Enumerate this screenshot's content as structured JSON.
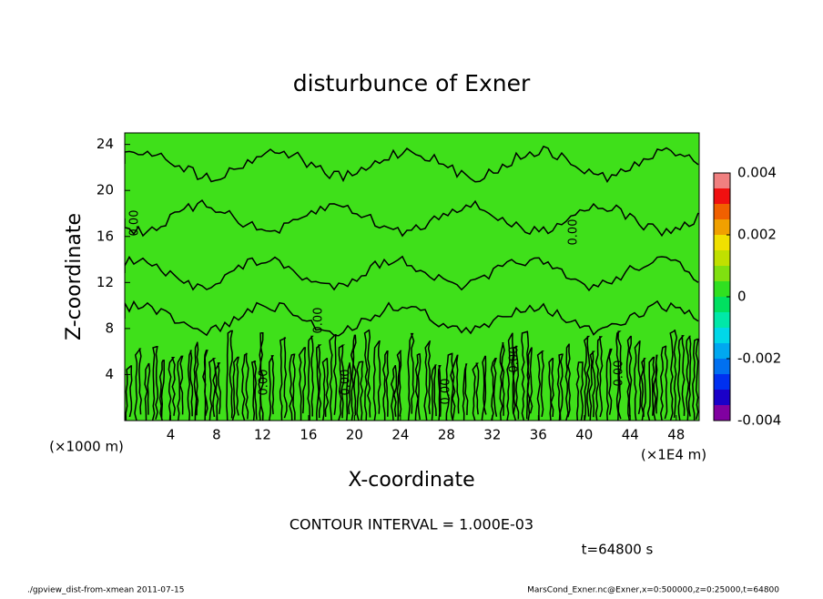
{
  "chart_data": {
    "type": "contour",
    "title": "disturbunce of Exner",
    "x_label": "X-coordinate",
    "y_label": "Z-coordinate",
    "x_unit": "(×1E4 m)",
    "y_unit": "(×1000 m)",
    "xlim": [
      0,
      50
    ],
    "xticks": [
      4,
      8,
      12,
      16,
      20,
      24,
      28,
      32,
      36,
      40,
      44,
      48
    ],
    "ylim": [
      0,
      25
    ],
    "yticks": [
      4,
      8,
      12,
      16,
      20,
      24
    ],
    "field_color": "#3fe01a",
    "contour_label": "0.00",
    "colorbar": {
      "lim": [
        -0.004,
        0.004
      ],
      "ticks": [
        -0.004,
        -0.002,
        0,
        0.002,
        0.004
      ],
      "colors": [
        "#8000a0",
        "#1a00c8",
        "#0030f0",
        "#0070f0",
        "#00a8f0",
        "#00d8e8",
        "#00e8a8",
        "#00e060",
        "#30e020",
        "#80e010",
        "#c0e000",
        "#f0e000",
        "#f0a000",
        "#f06000",
        "#f01010",
        "#f08080"
      ]
    },
    "contour_interval": "CONTOUR INTERVAL = 1.000E-03",
    "time_label": "t=64800 s",
    "footer_left": "./gpview_dist-from-xmean  2011-07-15",
    "footer_right": "MarsCond_Exner.nc@Exner,x=0:500000,z=0:25000,t=64800"
  }
}
